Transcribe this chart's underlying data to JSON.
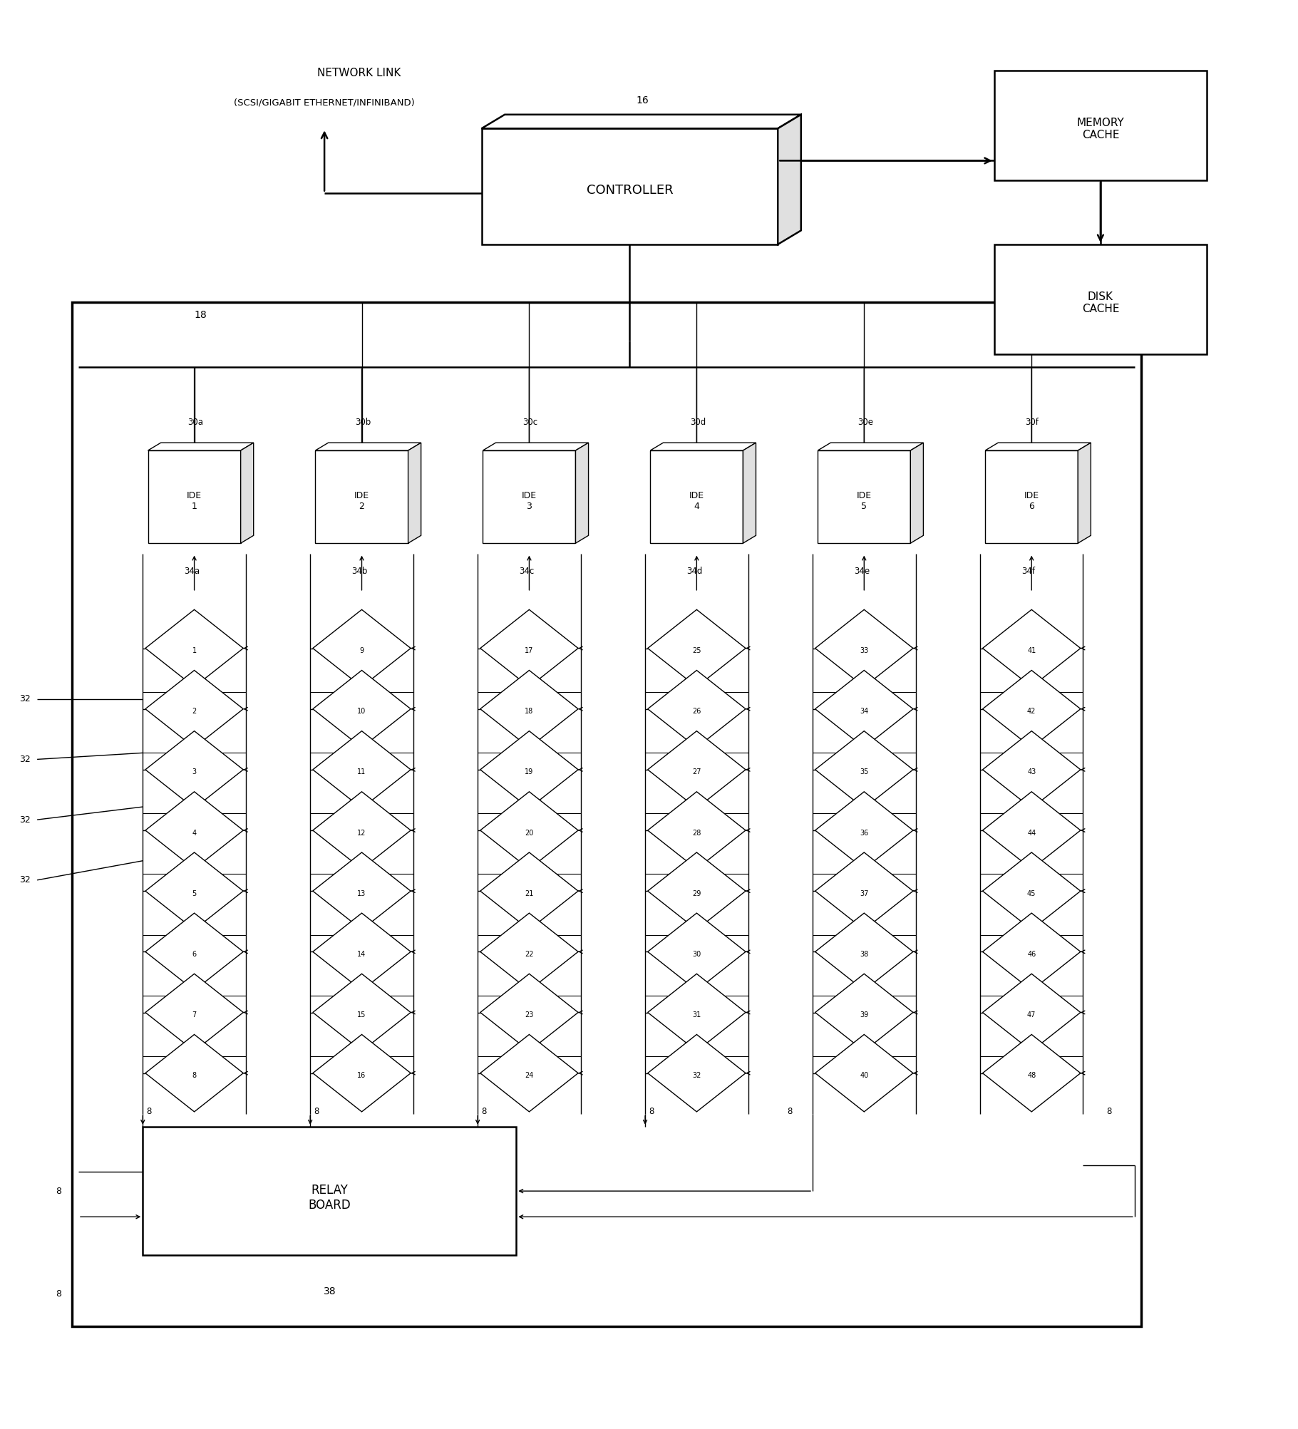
{
  "fig_width": 18.21,
  "fig_height": 20.05,
  "bg_color": "#ffffff",
  "controller_label": "CONTROLLER",
  "controller_ref": "16",
  "memory_cache_label": "MEMORY\nCACHE",
  "disk_cache_label": "DISK\nCACHE",
  "relay_board_label": "RELAY\nBOARD",
  "relay_board_ref": "38",
  "network_link_line1": "NETWORK LINK",
  "network_link_line2": "(SCSI/GIGABIT ETHERNET/INFINIBAND)",
  "bus_ref": "18",
  "ide_labels": [
    "IDE\n1",
    "IDE\n2",
    "IDE\n3",
    "IDE\n4",
    "IDE\n5",
    "IDE\n6"
  ],
  "ide_refs": [
    "30a",
    "30b",
    "30c",
    "30d",
    "30e",
    "30f"
  ],
  "chain_refs": [
    "34a",
    "34b",
    "34c",
    "34d",
    "34e",
    "34f"
  ],
  "disk_numbers": [
    [
      1,
      2,
      3,
      4,
      5,
      6,
      7,
      8
    ],
    [
      9,
      10,
      11,
      12,
      13,
      14,
      15,
      16
    ],
    [
      17,
      18,
      19,
      20,
      21,
      22,
      23,
      24
    ],
    [
      25,
      26,
      27,
      28,
      29,
      30,
      31,
      32
    ],
    [
      33,
      34,
      35,
      36,
      37,
      38,
      39,
      40
    ],
    [
      41,
      42,
      43,
      44,
      45,
      46,
      47,
      48
    ]
  ]
}
